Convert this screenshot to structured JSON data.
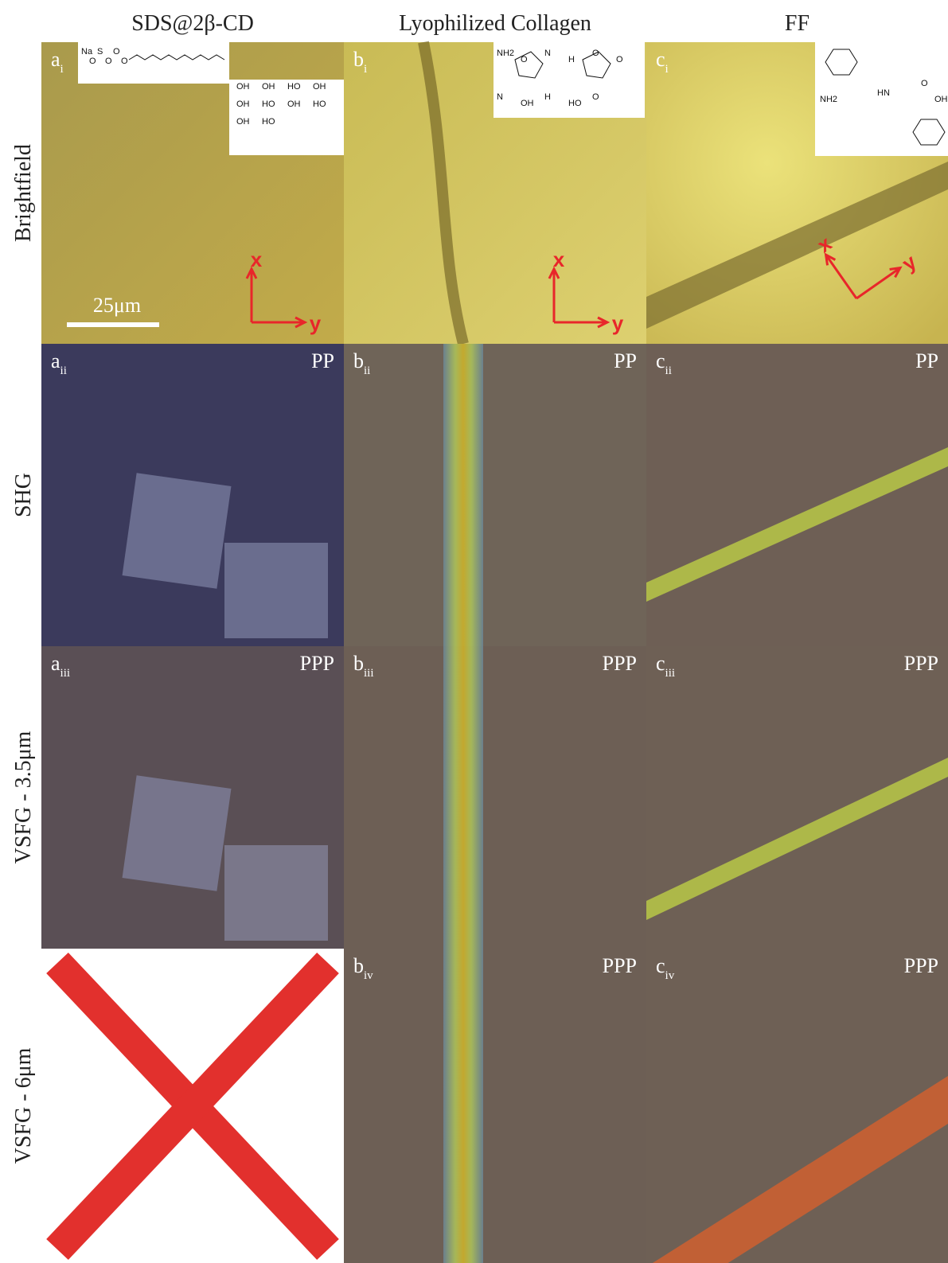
{
  "columns": [
    "SDS@2β-CD",
    "Lyophilized Collagen",
    "FF"
  ],
  "rows": [
    "Brightfield",
    "SHG",
    "VSFG - 3.5μm",
    "VSFG - 6μm"
  ],
  "panels": [
    [
      {
        "letter": "a",
        "sub": "i"
      },
      {
        "letter": "b",
        "sub": "i"
      },
      {
        "letter": "c",
        "sub": "i"
      }
    ],
    [
      {
        "letter": "a",
        "sub": "ii",
        "mode": "PP"
      },
      {
        "letter": "b",
        "sub": "ii",
        "mode": "PP"
      },
      {
        "letter": "c",
        "sub": "ii",
        "mode": "PP"
      }
    ],
    [
      {
        "letter": "a",
        "sub": "iii",
        "mode": "PPP"
      },
      {
        "letter": "b",
        "sub": "iii",
        "mode": "PPP"
      },
      {
        "letter": "c",
        "sub": "iii",
        "mode": "PPP"
      }
    ],
    [
      null,
      {
        "letter": "b",
        "sub": "iv",
        "mode": "PPP"
      },
      {
        "letter": "c",
        "sub": "iv",
        "mode": "PPP"
      }
    ]
  ],
  "scale_bar": "25μm",
  "axes": [
    {
      "x": "x",
      "y": "y"
    },
    {
      "x": "x",
      "y": "y"
    },
    {
      "x": "x",
      "y": "y"
    }
  ],
  "insets": [
    [
      "Na",
      "O",
      "S",
      "O",
      "O",
      "O",
      "OH",
      "OH",
      "HO",
      "OH",
      "OH",
      "HO",
      "OH",
      "HO",
      "OH",
      "HO"
    ],
    [
      "NH2",
      "O",
      "N",
      "H",
      "O",
      "O",
      "N",
      "OH",
      "H",
      "HO",
      "O"
    ],
    [
      "NH2",
      "HN",
      "O",
      "OH"
    ]
  ]
}
